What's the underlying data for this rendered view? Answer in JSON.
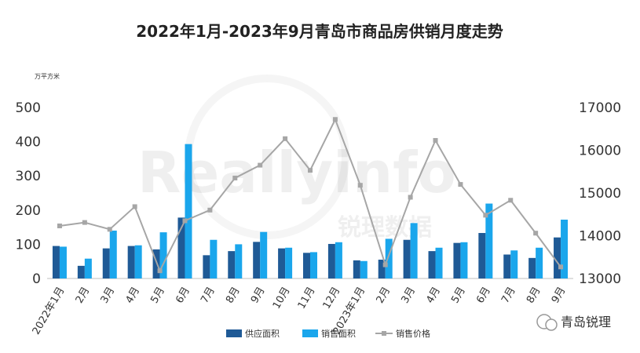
{
  "chart_data": {
    "type": "bar+line",
    "title": "2022年1月-2023年9月青岛市商品房供销月度走势",
    "unit_label": "万平方米",
    "categories": [
      "2022年1月",
      "2月",
      "3月",
      "4月",
      "5月",
      "6月",
      "7月",
      "8月",
      "9月",
      "10月",
      "11月",
      "12月",
      "2023年1月",
      "2月",
      "3月",
      "4月",
      "5月",
      "6月",
      "7月",
      "8月",
      "9月"
    ],
    "series": [
      {
        "name": "供应面积",
        "type": "bar",
        "axis": "left",
        "color": "#1f5a96",
        "values": [
          95,
          37,
          88,
          95,
          85,
          178,
          68,
          80,
          107,
          88,
          75,
          101,
          53,
          55,
          113,
          80,
          104,
          133,
          70,
          60,
          120
        ]
      },
      {
        "name": "销售面积",
        "type": "bar",
        "axis": "left",
        "color": "#1aa6ec",
        "values": [
          93,
          58,
          140,
          97,
          135,
          393,
          113,
          100,
          136,
          90,
          77,
          106,
          51,
          116,
          162,
          90,
          106,
          219,
          82,
          90,
          172
        ]
      },
      {
        "name": "销售价格",
        "type": "line",
        "axis": "right",
        "color": "#a6a6a6",
        "values": [
          14230,
          14310,
          14150,
          14680,
          13180,
          14350,
          14600,
          15350,
          15650,
          16270,
          15530,
          16720,
          15180,
          13320,
          14900,
          16230,
          15200,
          14480,
          14830,
          14060,
          13270
        ]
      }
    ],
    "y_left": {
      "min": 0,
      "max": 500,
      "ticks": [
        0,
        100,
        200,
        300,
        400,
        500
      ]
    },
    "y_right": {
      "min": 13000,
      "max": 17000,
      "ticks": [
        13000,
        14000,
        15000,
        16000,
        17000
      ]
    },
    "grid": false,
    "legend_position": "bottom"
  },
  "watermark": {
    "text": "Reallyinfo",
    "sub": "锐理数据"
  },
  "brand": {
    "text": "青岛锐理"
  }
}
